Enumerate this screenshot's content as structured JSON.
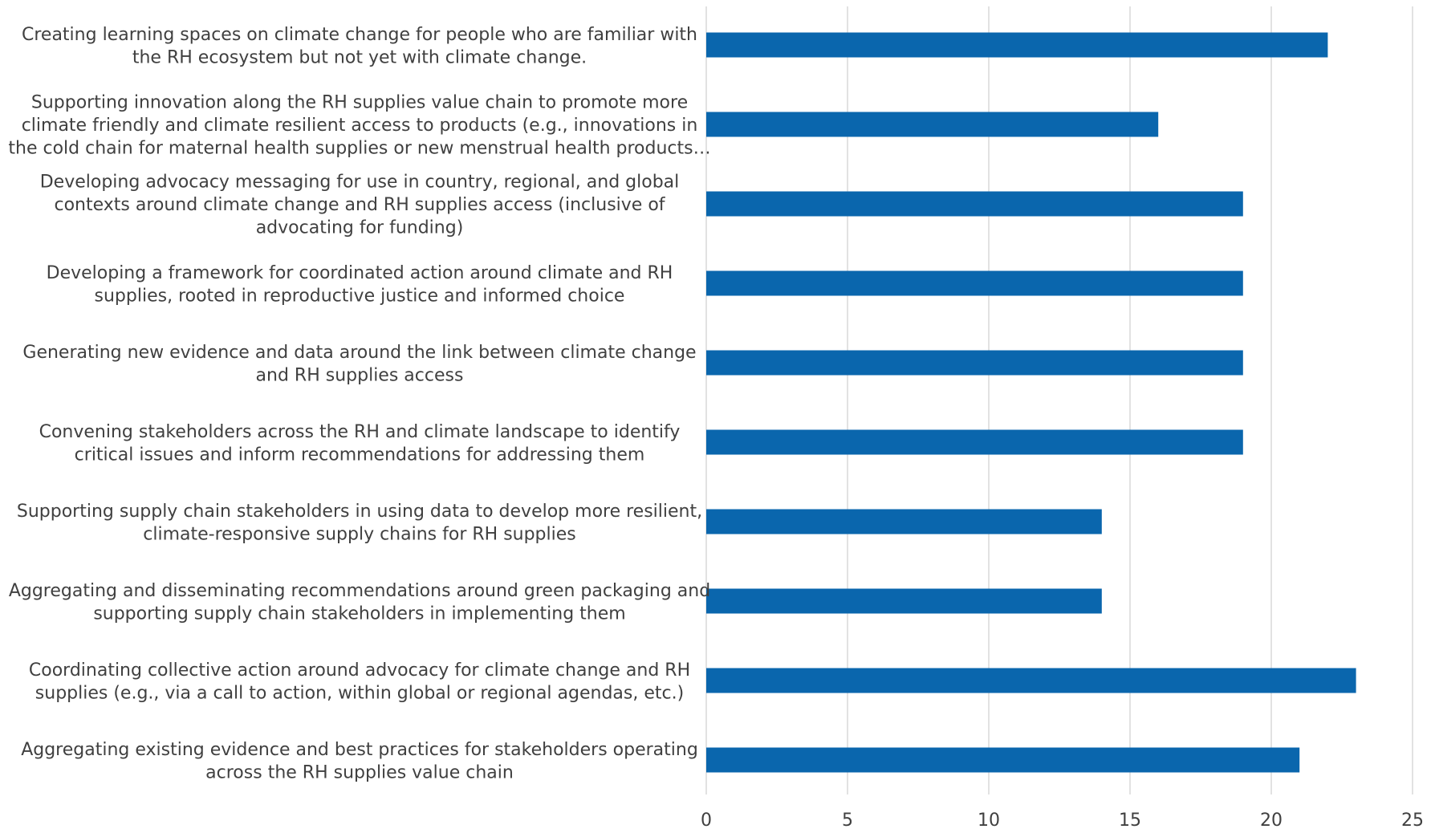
{
  "chart_data": {
    "type": "bar",
    "orientation": "horizontal",
    "title": "",
    "xlabel": "",
    "ylabel": "",
    "xlim": [
      0,
      25
    ],
    "x_ticks": [
      0,
      5,
      10,
      15,
      20,
      25
    ],
    "grid": "vertical",
    "legend": "none",
    "bar_color": "#0a66ad",
    "categories": [
      [
        "Creating learning spaces on climate change for people who are familiar with",
        "the RH ecosystem but not yet with climate change."
      ],
      [
        "Supporting innovation along the RH supplies value chain to promote more",
        "climate friendly and climate resilient access to products (e.g., innovations in",
        "the cold chain for maternal health supplies or new menstrual health products…"
      ],
      [
        "Developing advocacy messaging for use in country, regional, and global",
        "contexts around climate change and RH supplies access (inclusive of",
        "advocating for funding)"
      ],
      [
        "Developing a framework for coordinated action around climate and RH",
        "supplies, rooted in reproductive justice and informed choice"
      ],
      [
        "Generating new evidence and data around the link between climate change",
        "and RH supplies access"
      ],
      [
        "Convening stakeholders across the RH and climate landscape to identify",
        "critical issues and inform recommendations for addressing them"
      ],
      [
        "Supporting supply chain stakeholders in using data to develop more resilient,",
        "climate-responsive supply chains for RH supplies"
      ],
      [
        "Aggregating and disseminating recommendations around green packaging and",
        "supporting supply chain stakeholders in implementing them"
      ],
      [
        "Coordinating collective action around advocacy for climate change and RH",
        "supplies (e.g., via a call to action, within global or regional agendas, etc.)"
      ],
      [
        "Aggregating existing evidence and best practices for stakeholders operating",
        "across the RH supplies value chain"
      ]
    ],
    "values": [
      22,
      16,
      19,
      19,
      19,
      19,
      14,
      14,
      23,
      21
    ]
  }
}
